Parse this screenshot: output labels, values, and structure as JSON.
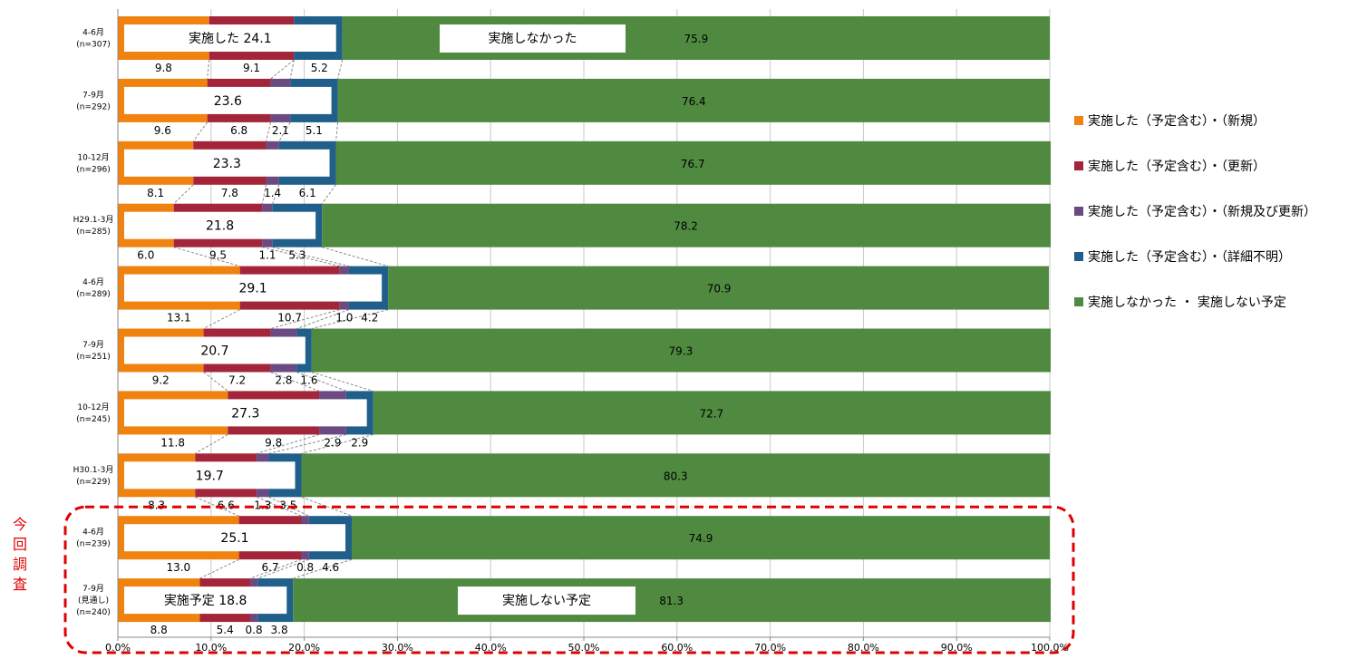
{
  "chart_data": {
    "type": "bar",
    "stacked": true,
    "orientation": "horizontal",
    "xlim": [
      0,
      100
    ],
    "x_ticks": [
      "0.0%",
      "10.0%",
      "20.0%",
      "30.0%",
      "40.0%",
      "50.0%",
      "60.0%",
      "70.0%",
      "80.0%",
      "90.0%",
      "100.0%"
    ],
    "grid": true,
    "legend_position": "right",
    "categories": [
      {
        "l1": "4-6月",
        "l2": "",
        "n": "(n=307)"
      },
      {
        "l1": "7-9月",
        "l2": "",
        "n": "(n=292)"
      },
      {
        "l1": "10-12月",
        "l2": "",
        "n": "(n=296)"
      },
      {
        "l1": "H29.1-3月",
        "l2": "",
        "n": "(n=285)"
      },
      {
        "l1": "4-6月",
        "l2": "",
        "n": "(n=289)"
      },
      {
        "l1": "7-9月",
        "l2": "",
        "n": "(n=251)"
      },
      {
        "l1": "10-12月",
        "l2": "",
        "n": "(n=245)"
      },
      {
        "l1": "H30.1-3月",
        "l2": "",
        "n": "(n=229)"
      },
      {
        "l1": "4-6月",
        "l2": "",
        "n": "(n=239)"
      },
      {
        "l1": "7-9月",
        "l2": "(見通し)",
        "n": "(n=240)"
      }
    ],
    "series": [
      {
        "name": "実施した（予定含む）・（新規）",
        "color": "#f0820f",
        "values": [
          9.8,
          9.6,
          8.1,
          6.0,
          13.1,
          9.2,
          11.8,
          8.3,
          13.0,
          8.8
        ]
      },
      {
        "name": "実施した（予定含む）・（更新）",
        "color": "#a3253a",
        "values": [
          9.1,
          6.8,
          7.8,
          9.5,
          10.7,
          7.2,
          9.8,
          6.6,
          6.7,
          5.4
        ]
      },
      {
        "name": "実施した（予定含む）・（新規及び更新）",
        "color": "#6a4a80",
        "values": [
          0.0,
          2.1,
          1.4,
          1.1,
          1.0,
          2.8,
          2.9,
          1.3,
          0.8,
          0.8
        ]
      },
      {
        "name": "実施した（予定含む）・（詳細不明）",
        "color": "#1f5f8a",
        "values": [
          5.2,
          5.1,
          6.1,
          5.3,
          4.2,
          1.6,
          2.9,
          3.5,
          4.6,
          3.8
        ]
      },
      {
        "name": "実施しなかった ・ 実施しない予定",
        "color": "#4f8a40",
        "values": [
          75.9,
          76.4,
          76.7,
          78.2,
          70.9,
          79.3,
          72.7,
          80.3,
          74.9,
          81.3
        ]
      }
    ],
    "small_labels": [
      [
        "9.8",
        "9.1",
        "",
        "5.2"
      ],
      [
        "9.6",
        "6.8",
        "2.1",
        "5.1"
      ],
      [
        "8.1",
        "7.8",
        "1.4",
        "6.1"
      ],
      [
        "6.0",
        "9.5",
        "1.1",
        "5.3"
      ],
      [
        "13.1",
        "10.7",
        "1.0",
        "4.2"
      ],
      [
        "9.2",
        "7.2",
        "2.8",
        "1.6"
      ],
      [
        "11.8",
        "9.8",
        "2.9",
        "2.9"
      ],
      [
        "8.3",
        "6.6",
        "1.3",
        "3.5"
      ],
      [
        "13.0",
        "6.7",
        "0.8",
        "4.6"
      ],
      [
        "8.8",
        "5.4",
        "0.8",
        "3.8"
      ]
    ],
    "implemented_totals": [
      "24.1",
      "23.6",
      "23.3",
      "21.8",
      "29.1",
      "20.7",
      "27.3",
      "19.7",
      "25.1",
      "18.8"
    ],
    "not_implemented_labels": [
      "75.9",
      "76.4",
      "76.7",
      "78.2",
      "70.9",
      "79.3",
      "72.7",
      "80.3",
      "74.9",
      "81.3"
    ],
    "annotations": {
      "implemented_prefix_first": "実施した",
      "not_implemented_first": "実施しなかった",
      "implemented_prefix_last": "実施予定",
      "not_implemented_last": "実施しない予定",
      "current_survey": [
        "今",
        "回",
        "調",
        "査"
      ]
    }
  }
}
